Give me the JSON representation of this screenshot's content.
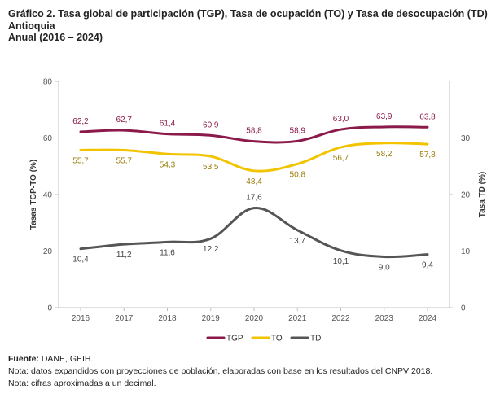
{
  "title": {
    "line1": "Gráfico 2. Tasa global de participación (TGP), Tasa de ocupación (TO) y Tasa de desocupación (TD)",
    "line2": "Antioquia",
    "line3": "Anual (2016 – 2024)"
  },
  "footer": {
    "source_label": "Fuente:",
    "source_text": " DANE, GEIH.",
    "note1": "Nota: datos expandidos con proyecciones de población, elaboradas con base en los resultados del CNPV 2018.",
    "note2": "Nota: cifras aproximadas a un decimal."
  },
  "chart_data": {
    "type": "line",
    "categories": [
      "2016",
      "2017",
      "2018",
      "2019",
      "2020",
      "2021",
      "2022",
      "2023",
      "2024"
    ],
    "ylabel_left": "Tasas  TGP-TO (%)",
    "ylabel_right": "Tasa TD (%)",
    "ylim_left": [
      0,
      80
    ],
    "yticks_left": [
      0,
      20,
      40,
      60,
      80
    ],
    "ylim_right": [
      0,
      40
    ],
    "yticks_right": [
      0,
      10,
      20,
      30
    ],
    "grid": false,
    "legend_position": "bottom",
    "series": [
      {
        "name": "TGP",
        "axis": "left",
        "color": "#8B1A4A",
        "label_color": "#8B1A4A",
        "label_pos": "above",
        "values": [
          62.2,
          62.7,
          61.4,
          60.9,
          58.8,
          58.9,
          63.0,
          63.9,
          63.8
        ],
        "labels": [
          "62,2",
          "62,7",
          "61,4",
          "60,9",
          "58,8",
          "58,9",
          "63,0",
          "63,9",
          "63,8"
        ]
      },
      {
        "name": "TO",
        "axis": "left",
        "color": "#F2C400",
        "label_color": "#9A7D0A",
        "label_pos": "below",
        "values": [
          55.7,
          55.7,
          54.3,
          53.5,
          48.4,
          50.8,
          56.7,
          58.2,
          57.8
        ],
        "labels": [
          "55,7",
          "55,7",
          "54,3",
          "53,5",
          "48,4",
          "50,8",
          "56,7",
          "58,2",
          "57,8"
        ]
      },
      {
        "name": "TD",
        "axis": "right",
        "color": "#555555",
        "label_color": "#444444",
        "label_pos": "mixed",
        "values": [
          10.4,
          11.2,
          11.6,
          12.2,
          17.6,
          13.7,
          10.1,
          9.0,
          9.4
        ],
        "labels": [
          "10,4",
          "11,2",
          "11,6",
          "12,2",
          "17,6",
          "13,7",
          "10,1",
          "9,0",
          "9,4"
        ]
      }
    ]
  }
}
